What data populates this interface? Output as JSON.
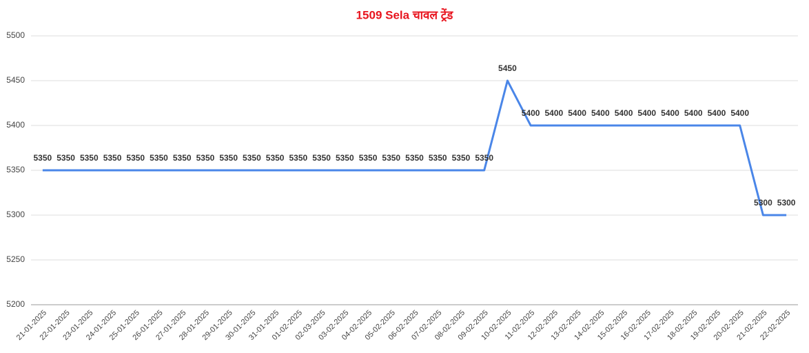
{
  "chart_data": {
    "type": "line",
    "title": "1509 Sela चावल ट्रेंड",
    "categories": [
      "21-01-2025",
      "22-01-2025",
      "23-01-2025",
      "24-01-2025",
      "25-01-2025",
      "26-01-2025",
      "27-01-2025",
      "28-01-2025",
      "29-01-2025",
      "30-01-2025",
      "31-01-2025",
      "01-02-2025",
      "02-03-2025",
      "03-02-2025",
      "04-02-2025",
      "05-02-2025",
      "06-02-2025",
      "07-02-2025",
      "08-02-2025",
      "09-02-2025",
      "10-02-2025",
      "11-02-2025",
      "12-02-2025",
      "13-02-2025",
      "14-02-2025",
      "15-02-2025",
      "16-02-2025",
      "17-02-2025",
      "18-02-2025",
      "19-02-2025",
      "20-02-2025",
      "21-02-2025",
      "22-02-2025"
    ],
    "values": [
      5350,
      5350,
      5350,
      5350,
      5350,
      5350,
      5350,
      5350,
      5350,
      5350,
      5350,
      5350,
      5350,
      5350,
      5350,
      5350,
      5350,
      5350,
      5350,
      5350,
      5450,
      5400,
      5400,
      5400,
      5400,
      5400,
      5400,
      5400,
      5400,
      5400,
      5400,
      5300,
      5300
    ],
    "color": "#4a86e8",
    "ylim": [
      5200,
      5500
    ],
    "yticks": [
      5200,
      5250,
      5300,
      5350,
      5400,
      5450,
      5500
    ],
    "grid": true
  }
}
